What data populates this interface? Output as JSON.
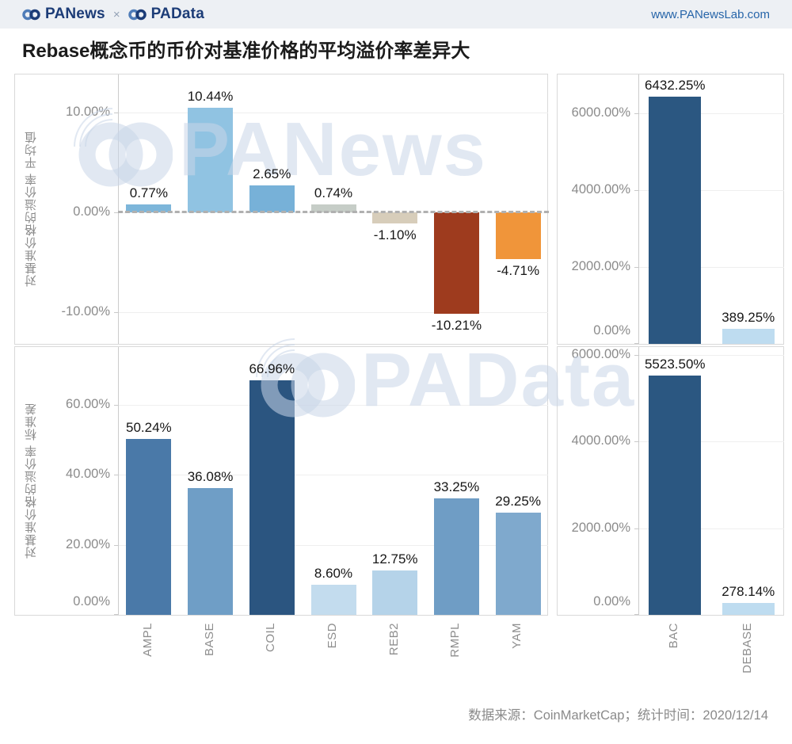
{
  "header": {
    "brand_left": "PANews",
    "brand_sep": "×",
    "brand_right": "PAData",
    "website": "www.PANewsLab.com"
  },
  "title": "Rebase概念币的币价对基准价格的平均溢价率差异大",
  "watermark": {
    "top_text": "PANews",
    "bottom_text": "PAData"
  },
  "footer": {
    "note": "数据来源：CoinMarketCap；统计时间：2020/12/14"
  },
  "colors": {
    "header_bg": "#edf0f4",
    "brand_navy": "#1c3c77",
    "link_blue": "#2765a9",
    "axis_text": "#8b8b8b",
    "watermark": "rgba(201,214,231,0.55)"
  },
  "chart_data": [
    {
      "panel": "panel-top-left",
      "type": "bar",
      "axis_label": "对基准价格的溢价率 平均值",
      "categories": [
        "AMPL",
        "BASE",
        "COIL",
        "ESD",
        "REB2",
        "RMPL",
        "YAM"
      ],
      "values": [
        0.77,
        10.44,
        2.65,
        0.74,
        -1.1,
        -10.21,
        -4.71
      ],
      "value_labels": [
        "0.77%",
        "10.44%",
        "2.65%",
        "0.74%",
        "-1.10%",
        "-10.21%",
        "-4.71%"
      ],
      "bar_colors": [
        "#7db6da",
        "#90c3e2",
        "#77b1d8",
        "#c6cdc7",
        "#d7cdba",
        "#9e3b1e",
        "#f0953a"
      ],
      "ylim": [
        -13.2,
        13.8
      ],
      "yticks": [
        {
          "value": 10,
          "label": "10.00%"
        },
        {
          "value": 0,
          "label": "0.00%"
        },
        {
          "value": -10,
          "label": "-10.00%"
        }
      ],
      "zero_line_dashed": true,
      "show_x_labels": false,
      "grid": true,
      "legend": "none"
    },
    {
      "panel": "panel-top-right",
      "type": "bar",
      "axis_label": "",
      "categories": [
        "BAC",
        "DEBASE"
      ],
      "values": [
        6432.25,
        389.25
      ],
      "value_labels": [
        "6432.25%",
        "389.25%"
      ],
      "bar_colors": [
        "#2b5781",
        "#bedcf0"
      ],
      "ylim": [
        0,
        7020
      ],
      "yticks": [
        {
          "value": 6000,
          "label": "6000.00%"
        },
        {
          "value": 4000,
          "label": "4000.00%"
        },
        {
          "value": 2000,
          "label": "2000.00%"
        },
        {
          "value": 0,
          "label": "0.00%"
        }
      ],
      "zero_line_dashed": false,
      "show_x_labels": false,
      "grid": true,
      "legend": "none"
    },
    {
      "panel": "panel-bottom-left",
      "type": "bar",
      "axis_label": "对基准价格的溢价率 标准差",
      "categories": [
        "AMPL",
        "BASE",
        "COIL",
        "ESD",
        "REB2",
        "RMPL",
        "YAM"
      ],
      "values": [
        50.24,
        36.08,
        66.96,
        8.6,
        12.75,
        33.25,
        29.25
      ],
      "value_labels": [
        "50.24%",
        "36.08%",
        "66.96%",
        "8.60%",
        "12.75%",
        "33.25%",
        "29.25%"
      ],
      "bar_colors": [
        "#4a79a8",
        "#6f9ec6",
        "#2b5580",
        "#c3dcee",
        "#b5d3e9",
        "#6f9dc5",
        "#7fa9cd"
      ],
      "ylim": [
        0,
        76.4
      ],
      "yticks": [
        {
          "value": 60,
          "label": "60.00%"
        },
        {
          "value": 40,
          "label": "40.00%"
        },
        {
          "value": 20,
          "label": "20.00%"
        },
        {
          "value": 0,
          "label": "0.00%"
        }
      ],
      "zero_line_dashed": false,
      "show_x_labels": true,
      "grid": true,
      "legend": "none"
    },
    {
      "panel": "panel-bottom-right",
      "type": "bar",
      "axis_label": "",
      "categories": [
        "BAC",
        "DEBASE"
      ],
      "values": [
        5523.5,
        278.14
      ],
      "value_labels": [
        "5523.50%",
        "278.14%"
      ],
      "bar_colors": [
        "#2b5781",
        "#bedcf0"
      ],
      "ylim": [
        0,
        6180
      ],
      "yticks": [
        {
          "value": 6000,
          "label": "6000.00%"
        },
        {
          "value": 4000,
          "label": "4000.00%"
        },
        {
          "value": 2000,
          "label": "2000.00%"
        },
        {
          "value": 0,
          "label": "0.00%"
        }
      ],
      "zero_line_dashed": false,
      "show_x_labels": true,
      "grid": true,
      "legend": "none"
    }
  ]
}
